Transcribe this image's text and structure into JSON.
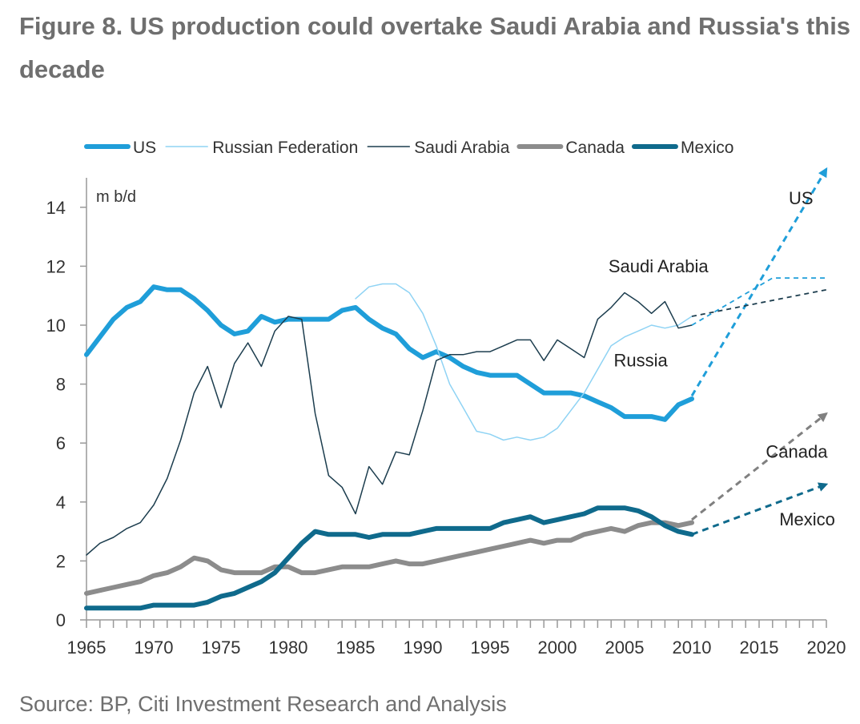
{
  "title": "Figure 8. US production could overtake Saudi Arabia and Russia's this decade",
  "source": "Source: BP, Citi Investment Research and Analysis",
  "chart_data": {
    "type": "line",
    "ylabel": "m b/d",
    "xlim": [
      1965,
      2020
    ],
    "ylim": [
      0,
      15
    ],
    "x_ticks": [
      1965,
      1970,
      1975,
      1980,
      1985,
      1990,
      1995,
      2000,
      2005,
      2010,
      2015,
      2020
    ],
    "y_ticks": [
      0,
      2,
      4,
      6,
      8,
      10,
      12,
      14
    ],
    "legend_position": "top",
    "legend": [
      {
        "name": "US",
        "color": "#1f9ed9",
        "width": 6
      },
      {
        "name": "Russian Federation",
        "color": "#8fd3f4",
        "width": 1.5
      },
      {
        "name": "Saudi Arabia",
        "color": "#1c3d4e",
        "width": 1.5
      },
      {
        "name": "Canada",
        "color": "#8c8c8c",
        "width": 6
      },
      {
        "name": "Mexico",
        "color": "#0f6a8c",
        "width": 6
      }
    ],
    "series": [
      {
        "name": "US",
        "color": "#1f9ed9",
        "width": 6,
        "x": [
          1965,
          1966,
          1967,
          1968,
          1969,
          1970,
          1971,
          1972,
          1973,
          1974,
          1975,
          1976,
          1977,
          1978,
          1979,
          1980,
          1981,
          1982,
          1983,
          1984,
          1985,
          1986,
          1987,
          1988,
          1989,
          1990,
          1991,
          1992,
          1993,
          1994,
          1995,
          1996,
          1997,
          1998,
          1999,
          2000,
          2001,
          2002,
          2003,
          2004,
          2005,
          2006,
          2007,
          2008,
          2009,
          2010
        ],
        "y": [
          9.0,
          9.6,
          10.2,
          10.6,
          10.8,
          11.3,
          11.2,
          11.2,
          10.9,
          10.5,
          10.0,
          9.7,
          9.8,
          10.3,
          10.1,
          10.2,
          10.2,
          10.2,
          10.2,
          10.5,
          10.6,
          10.2,
          9.9,
          9.7,
          9.2,
          8.9,
          9.1,
          8.9,
          8.6,
          8.4,
          8.3,
          8.3,
          8.3,
          8.0,
          7.7,
          7.7,
          7.7,
          7.6,
          7.4,
          7.2,
          6.9,
          6.9,
          6.9,
          6.8,
          7.3,
          7.5
        ]
      },
      {
        "name": "Russian Federation",
        "color": "#8fd3f4",
        "width": 1.5,
        "x": [
          1985,
          1986,
          1987,
          1988,
          1989,
          1990,
          1991,
          1992,
          1993,
          1994,
          1995,
          1996,
          1997,
          1998,
          1999,
          2000,
          2001,
          2002,
          2003,
          2004,
          2005,
          2006,
          2007,
          2008,
          2009,
          2010
        ],
        "y": [
          10.9,
          11.3,
          11.4,
          11.4,
          11.1,
          10.4,
          9.3,
          8.0,
          7.2,
          6.4,
          6.3,
          6.1,
          6.2,
          6.1,
          6.2,
          6.5,
          7.1,
          7.7,
          8.5,
          9.3,
          9.6,
          9.8,
          10.0,
          9.9,
          10.0,
          10.3
        ]
      },
      {
        "name": "Saudi Arabia",
        "color": "#1c3d4e",
        "width": 1.5,
        "x": [
          1965,
          1966,
          1967,
          1968,
          1969,
          1970,
          1971,
          1972,
          1973,
          1974,
          1975,
          1976,
          1977,
          1978,
          1979,
          1980,
          1981,
          1982,
          1983,
          1984,
          1985,
          1986,
          1987,
          1988,
          1989,
          1990,
          1991,
          1992,
          1993,
          1994,
          1995,
          1996,
          1997,
          1998,
          1999,
          2000,
          2001,
          2002,
          2003,
          2004,
          2005,
          2006,
          2007,
          2008,
          2009,
          2010
        ],
        "y": [
          2.2,
          2.6,
          2.8,
          3.1,
          3.3,
          3.9,
          4.8,
          6.1,
          7.7,
          8.6,
          7.2,
          8.7,
          9.4,
          8.6,
          9.8,
          10.3,
          10.2,
          7.0,
          4.9,
          4.5,
          3.6,
          5.2,
          4.6,
          5.7,
          5.6,
          7.1,
          8.8,
          9.0,
          9.0,
          9.1,
          9.1,
          9.3,
          9.5,
          9.5,
          8.8,
          9.5,
          9.2,
          8.9,
          10.2,
          10.6,
          11.1,
          10.8,
          10.4,
          10.8,
          9.9,
          10.0
        ]
      },
      {
        "name": "Canada",
        "color": "#8c8c8c",
        "width": 6,
        "x": [
          1965,
          1966,
          1967,
          1968,
          1969,
          1970,
          1971,
          1972,
          1973,
          1974,
          1975,
          1976,
          1977,
          1978,
          1979,
          1980,
          1981,
          1982,
          1983,
          1984,
          1985,
          1986,
          1987,
          1988,
          1989,
          1990,
          1991,
          1992,
          1993,
          1994,
          1995,
          1996,
          1997,
          1998,
          1999,
          2000,
          2001,
          2002,
          2003,
          2004,
          2005,
          2006,
          2007,
          2008,
          2009,
          2010
        ],
        "y": [
          0.9,
          1.0,
          1.1,
          1.2,
          1.3,
          1.5,
          1.6,
          1.8,
          2.1,
          2.0,
          1.7,
          1.6,
          1.6,
          1.6,
          1.8,
          1.8,
          1.6,
          1.6,
          1.7,
          1.8,
          1.8,
          1.8,
          1.9,
          2.0,
          1.9,
          1.9,
          2.0,
          2.1,
          2.2,
          2.3,
          2.4,
          2.5,
          2.6,
          2.7,
          2.6,
          2.7,
          2.7,
          2.9,
          3.0,
          3.1,
          3.0,
          3.2,
          3.3,
          3.3,
          3.2,
          3.3
        ]
      },
      {
        "name": "Mexico",
        "color": "#0f6a8c",
        "width": 6,
        "x": [
          1965,
          1966,
          1967,
          1968,
          1969,
          1970,
          1971,
          1972,
          1973,
          1974,
          1975,
          1976,
          1977,
          1978,
          1979,
          1980,
          1981,
          1982,
          1983,
          1984,
          1985,
          1986,
          1987,
          1988,
          1989,
          1990,
          1991,
          1992,
          1993,
          1994,
          1995,
          1996,
          1997,
          1998,
          1999,
          2000,
          2001,
          2002,
          2003,
          2004,
          2005,
          2006,
          2007,
          2008,
          2009,
          2010
        ],
        "y": [
          0.4,
          0.4,
          0.4,
          0.4,
          0.4,
          0.5,
          0.5,
          0.5,
          0.5,
          0.6,
          0.8,
          0.9,
          1.1,
          1.3,
          1.6,
          2.1,
          2.6,
          3.0,
          2.9,
          2.9,
          2.9,
          2.8,
          2.9,
          2.9,
          2.9,
          3.0,
          3.1,
          3.1,
          3.1,
          3.1,
          3.1,
          3.3,
          3.4,
          3.5,
          3.3,
          3.4,
          3.5,
          3.6,
          3.8,
          3.8,
          3.8,
          3.7,
          3.5,
          3.2,
          3.0,
          2.9
        ]
      }
    ],
    "projections": [
      {
        "name": "US",
        "color": "#1f9ed9",
        "arrow": true,
        "x": [
          2010,
          2020
        ],
        "y": [
          7.6,
          15.3
        ]
      },
      {
        "name": "Russian Federation",
        "color": "#1f9ed9",
        "arrow": false,
        "x": [
          2010,
          2016,
          2020
        ],
        "y": [
          10.0,
          11.6,
          11.6
        ]
      },
      {
        "name": "Saudi Arabia",
        "color": "#1c3d4e",
        "arrow": false,
        "x": [
          2010,
          2020
        ],
        "y": [
          10.3,
          11.2
        ]
      },
      {
        "name": "Canada",
        "color": "#808080",
        "arrow": true,
        "x": [
          2010,
          2020
        ],
        "y": [
          3.4,
          7.0
        ]
      },
      {
        "name": "Mexico",
        "color": "#0f6a8c",
        "arrow": true,
        "x": [
          2010,
          2020
        ],
        "y": [
          2.9,
          4.6
        ]
      }
    ],
    "annotations": [
      {
        "text": "US",
        "x": 2017.2,
        "y": 14.1
      },
      {
        "text": "Saudi Arabia",
        "x": 2003.8,
        "y": 11.8
      },
      {
        "text": "Russia",
        "x": 2004.2,
        "y": 8.6
      },
      {
        "text": "Canada",
        "x": 2015.5,
        "y": 5.5
      },
      {
        "text": "Mexico",
        "x": 2016.5,
        "y": 3.2
      }
    ]
  }
}
